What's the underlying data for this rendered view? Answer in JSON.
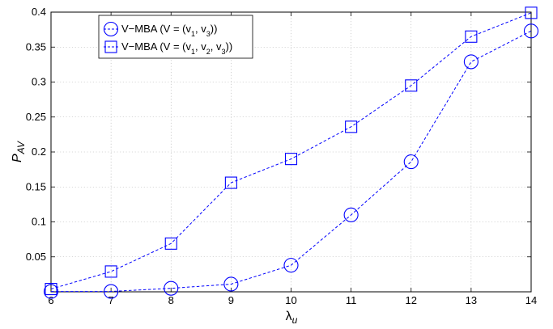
{
  "chart_data": {
    "type": "line",
    "xlabel": "λ",
    "xlabel_sub": "u",
    "ylabel": "P",
    "ylabel_sub": "AV",
    "xlim": [
      6,
      14
    ],
    "ylim": [
      0,
      0.4
    ],
    "x_ticks": [
      6,
      7,
      8,
      9,
      10,
      11,
      12,
      13,
      14
    ],
    "y_ticks": [
      0.05,
      0.1,
      0.15,
      0.2,
      0.25,
      0.3,
      0.35,
      0.4
    ],
    "grid": true,
    "legend_position": "top-left",
    "x": [
      6,
      7,
      8,
      9,
      10,
      11,
      12,
      13,
      14
    ],
    "series": [
      {
        "name": "V−MBA (V = (v1, v3))",
        "legend": {
          "main": "V−MBA (V = (v",
          "parts": [
            [
              "1",
              ", v"
            ],
            [
              "3",
              "))"
            ]
          ]
        },
        "marker": "circle",
        "color": "#0000ff",
        "values": [
          0.0005,
          0.0005,
          0.005,
          0.011,
          0.038,
          0.11,
          0.186,
          0.329,
          0.373
        ]
      },
      {
        "name": "V−MBA (V = (v1, v2, v3))",
        "legend": {
          "main": "V−MBA (V = (v",
          "parts": [
            [
              "1",
              ", v"
            ],
            [
              "2",
              ", v"
            ],
            [
              "3",
              "))"
            ]
          ]
        },
        "marker": "square",
        "color": "#0000ff",
        "values": [
          0.004,
          0.029,
          0.069,
          0.156,
          0.19,
          0.236,
          0.295,
          0.365,
          0.399
        ]
      }
    ]
  }
}
